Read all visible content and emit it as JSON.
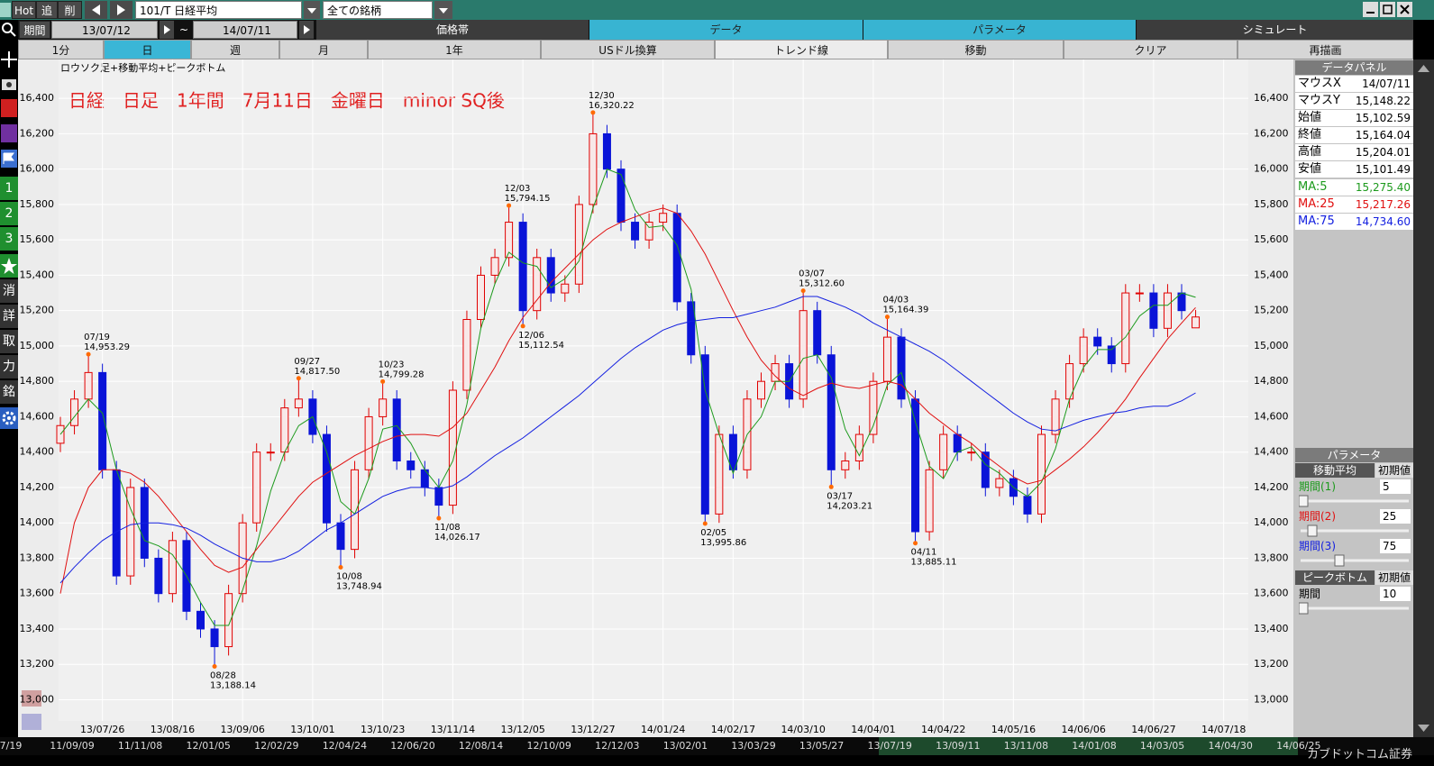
{
  "toolbar": {
    "buttons": [
      "Hot",
      "追",
      "削"
    ],
    "symbol": "101/T 日経平均",
    "filter": "全ての銘柄"
  },
  "period": {
    "label": "期間",
    "from": "13/07/12",
    "separator": "~",
    "to": "14/07/11"
  },
  "tabs": [
    "価格帯",
    "データ",
    "パラメータ",
    "シミュレート"
  ],
  "buttons": [
    "1分",
    "日",
    "週",
    "月",
    "1年",
    "USドル換算",
    "トレンド線",
    "移動",
    "クリア",
    "再描画"
  ],
  "sidebar": [
    "1",
    "2",
    "3",
    "消",
    "詳",
    "取",
    "力",
    "銘"
  ],
  "data_panel": {
    "title": "データパネル",
    "rows": [
      [
        "マウスX",
        "14/07/11"
      ],
      [
        "マウスY",
        "15,148.22"
      ],
      [
        "始値",
        "15,102.59"
      ],
      [
        "終値",
        "15,164.04"
      ],
      [
        "高値",
        "15,204.01"
      ],
      [
        "安値",
        "15,101.49"
      ],
      [
        "MA:5",
        "15,275.40"
      ],
      [
        "MA:25",
        "15,217.26"
      ],
      [
        "MA:75",
        "14,734.60"
      ]
    ]
  },
  "parameter_panel": {
    "title": "パラメータ",
    "sections": [
      {
        "title": "移動平均",
        "reset": "初期値",
        "params": [
          {
            "label": "期間(1)",
            "value": 5
          },
          {
            "label": "期間(2)",
            "value": 25
          },
          {
            "label": "期間(3)",
            "value": 75
          }
        ]
      },
      {
        "title": "ピークボトム",
        "reset": "初期値",
        "params": [
          {
            "label": "期間",
            "value": 10
          }
        ]
      }
    ]
  },
  "scroller": [
    "7/19",
    "11/09/09",
    "11/11/08",
    "12/01/05",
    "12/02/29",
    "12/04/24",
    "12/06/20",
    "12/08/14",
    "12/10/09",
    "12/12/03",
    "13/02/01",
    "13/03/29",
    "13/05/27",
    "13/07/19",
    "13/09/11",
    "13/11/08",
    "14/01/08",
    "14/03/05",
    "14/04/30",
    "14/06/25"
  ],
  "brand": "カブドットコム証券",
  "chart_data": {
    "type": "candlestick",
    "subtitle": "ロウソク足+移動平均+ピークボトム",
    "title": "日経　日足　1年間　7月11日　金曜日　minor SQ後",
    "categories": [
      null,
      null,
      null,
      "13/07/26",
      null,
      null,
      null,
      null,
      "13/08/16",
      null,
      null,
      null,
      null,
      "13/09/06",
      null,
      null,
      null,
      null,
      "13/10/01",
      null,
      null,
      null,
      null,
      "13/10/23",
      null,
      null,
      null,
      null,
      "13/11/14",
      null,
      null,
      null,
      null,
      "13/12/05",
      null,
      null,
      null,
      null,
      "13/12/27",
      null,
      null,
      null,
      null,
      "14/01/24",
      null,
      null,
      null,
      null,
      "14/02/17",
      null,
      null,
      null,
      null,
      "14/03/10",
      null,
      null,
      null,
      null,
      "14/04/01",
      null,
      null,
      null,
      null,
      "14/04/22",
      null,
      null,
      null,
      null,
      "14/05/16",
      null,
      null,
      null,
      null,
      "14/06/06",
      null,
      null,
      null,
      null,
      "14/06/27",
      null,
      null,
      null,
      null,
      "14/07/18"
    ],
    "open": [
      14450,
      14550,
      14700,
      14850,
      14300,
      13700,
      14200,
      13800,
      13600,
      13900,
      13500,
      13400,
      13300,
      13600,
      14000,
      14400,
      14400,
      14650,
      14700,
      14500,
      14000,
      13850,
      14300,
      14600,
      14700,
      14350,
      14300,
      14200,
      14100,
      14750,
      15150,
      15400,
      15500,
      15700,
      15200,
      15500,
      15300,
      15350,
      15800,
      16200,
      16000,
      15700,
      15600,
      15700,
      15750,
      15250,
      14950,
      14050,
      14500,
      14300,
      14700,
      14800,
      14900,
      14700,
      15200,
      14950,
      14300,
      14350,
      14500,
      14800,
      15050,
      14700,
      13950,
      14300,
      14500,
      14400,
      14400,
      14200,
      14250,
      14150,
      14050,
      14500,
      14700,
      14900,
      15050,
      15000,
      14900,
      15300,
      15300,
      15100,
      15300,
      15102.59,
      null,
      null
    ],
    "high": [
      14600,
      14750,
      14953.29,
      14900,
      14350,
      14250,
      14250,
      13850,
      13950,
      13950,
      13550,
      13450,
      13650,
      14050,
      14450,
      14450,
      14700,
      14817.5,
      14750,
      14550,
      14050,
      14350,
      14650,
      14799.28,
      14750,
      14400,
      14350,
      14250,
      14800,
      15200,
      15450,
      15550,
      15794.15,
      15750,
      15550,
      15550,
      15400,
      15850,
      16320.22,
      16250,
      16050,
      15750,
      15750,
      15800,
      15800,
      15300,
      15000,
      14550,
      14550,
      14750,
      14850,
      14950,
      14950,
      15312.6,
      15250,
      15000,
      14400,
      14550,
      14850,
      15164.39,
      15100,
      14750,
      14350,
      14550,
      14550,
      14450,
      14450,
      14300,
      14300,
      14200,
      14550,
      14750,
      14950,
      15100,
      15100,
      15050,
      15350,
      15350,
      15350,
      15350,
      15350,
      15204.01,
      null,
      null
    ],
    "low": [
      14400,
      14500,
      14650,
      14250,
      13650,
      13650,
      13750,
      13550,
      13550,
      13450,
      13350,
      13188.14,
      13250,
      13550,
      13950,
      14350,
      14350,
      14600,
      14450,
      13950,
      13748.94,
      13800,
      14250,
      14550,
      14300,
      14250,
      14150,
      14026.17,
      14050,
      14700,
      15100,
      15350,
      15450,
      15112.54,
      15150,
      15250,
      15250,
      15300,
      15750,
      15950,
      15650,
      15550,
      15550,
      15650,
      15200,
      14900,
      13995.86,
      14000,
      14250,
      14250,
      14650,
      14750,
      14650,
      14650,
      14900,
      14203.21,
      14250,
      14300,
      14450,
      14750,
      14650,
      13885.11,
      13900,
      14250,
      14350,
      14350,
      14150,
      14150,
      14100,
      14000,
      14000,
      14450,
      14650,
      14850,
      14950,
      14850,
      14850,
      15250,
      15050,
      15050,
      15150,
      15101.49,
      null,
      null
    ],
    "close": [
      14550,
      14700,
      14850,
      14300,
      13700,
      14200,
      13800,
      13600,
      13900,
      13500,
      13400,
      13300,
      13600,
      14000,
      14400,
      14400,
      14650,
      14700,
      14500,
      14000,
      13850,
      14300,
      14600,
      14700,
      14350,
      14300,
      14200,
      14100,
      14750,
      15150,
      15400,
      15500,
      15700,
      15200,
      15500,
      15300,
      15350,
      15800,
      16200,
      16000,
      15700,
      15600,
      15700,
      15750,
      15250,
      14950,
      14050,
      14500,
      14300,
      14700,
      14800,
      14900,
      14700,
      15200,
      14950,
      14300,
      14350,
      14500,
      14800,
      15050,
      14700,
      13950,
      14300,
      14500,
      14400,
      14400,
      14200,
      14250,
      14150,
      14050,
      14500,
      14700,
      14900,
      15050,
      15000,
      14900,
      15300,
      15300,
      15100,
      15300,
      15200,
      15164.04,
      null,
      null
    ],
    "up_color": "#e00000",
    "down_color": "#0a14d8",
    "series": [
      {
        "color": "#1c9a1c",
        "values": [
          14500,
          14600,
          14700,
          14620,
          14300,
          14080,
          13900,
          13870,
          13820,
          13700,
          13550,
          13420,
          13420,
          13620,
          13870,
          14180,
          14400,
          14550,
          14600,
          14400,
          14120,
          14050,
          14250,
          14530,
          14550,
          14450,
          14300,
          14200,
          14350,
          14670,
          15100,
          15350,
          15530,
          15470,
          15450,
          15330,
          15380,
          15480,
          15780,
          16000,
          15970,
          15770,
          15670,
          15680,
          15570,
          15320,
          14750,
          14500,
          14280,
          14500,
          14600,
          14800,
          14800,
          14930,
          14950,
          14820,
          14530,
          14380,
          14550,
          14780,
          14850,
          14570,
          14320,
          14250,
          14400,
          14430,
          14330,
          14280,
          14200,
          14150,
          14230,
          14420,
          14700,
          14880,
          14980,
          14980,
          15050,
          15170,
          15230,
          15230,
          15300,
          15275.4,
          null,
          null
        ]
      },
      {
        "color": "#e01010",
        "values": [
          13600,
          14000,
          14200,
          14300,
          14300,
          14280,
          14230,
          14150,
          14050,
          13950,
          13850,
          13760,
          13720,
          13750,
          13850,
          13950,
          14050,
          14150,
          14230,
          14280,
          14330,
          14380,
          14420,
          14460,
          14490,
          14500,
          14500,
          14490,
          14540,
          14620,
          14750,
          14880,
          15030,
          15160,
          15260,
          15360,
          15440,
          15520,
          15600,
          15660,
          15700,
          15730,
          15760,
          15780,
          15750,
          15650,
          15520,
          15360,
          15200,
          15050,
          14920,
          14830,
          14760,
          14720,
          14760,
          14790,
          14770,
          14760,
          14780,
          14800,
          14780,
          14700,
          14620,
          14560,
          14500,
          14450,
          14380,
          14320,
          14260,
          14220,
          14240,
          14300,
          14360,
          14430,
          14510,
          14600,
          14700,
          14820,
          14930,
          15040,
          15130,
          15217.26,
          null,
          null
        ]
      },
      {
        "color": "#1420e0",
        "values": [
          13660,
          13750,
          13830,
          13900,
          13950,
          13990,
          14000,
          14000,
          13990,
          13970,
          13930,
          13880,
          13840,
          13800,
          13780,
          13780,
          13800,
          13840,
          13900,
          13960,
          14000,
          14050,
          14100,
          14150,
          14180,
          14200,
          14200,
          14190,
          14210,
          14260,
          14320,
          14380,
          14430,
          14480,
          14540,
          14600,
          14660,
          14720,
          14790,
          14860,
          14930,
          14990,
          15040,
          15090,
          15120,
          15140,
          15150,
          15160,
          15160,
          15180,
          15200,
          15220,
          15250,
          15280,
          15280,
          15250,
          15220,
          15180,
          15130,
          15090,
          15050,
          15010,
          14970,
          14920,
          14860,
          14800,
          14740,
          14680,
          14620,
          14570,
          14530,
          14520,
          14550,
          14580,
          14600,
          14620,
          14630,
          14650,
          14660,
          14660,
          14690,
          14734.6,
          null,
          null
        ]
      }
    ],
    "annotations": [
      {
        "date": "07/19",
        "value": 14953.29,
        "label": "14,953.29"
      },
      {
        "date": "08/28",
        "value": 13188.14,
        "label": "13,188.14"
      },
      {
        "date": "09/27",
        "value": 14817.5,
        "label": "14,817.50"
      },
      {
        "date": "10/08",
        "value": 13748.94,
        "label": "13,748.94"
      },
      {
        "date": "10/23",
        "value": 14799.28,
        "label": "14,799.28"
      },
      {
        "date": "11/08",
        "value": 14026.17,
        "label": "14,026.17"
      },
      {
        "date": "12/03",
        "value": 15794.15,
        "label": "15,794.15"
      },
      {
        "date": "12/06",
        "value": 15112.54,
        "label": "15,112.54"
      },
      {
        "date": "12/30",
        "value": 16320.22,
        "label": "16,320.22"
      },
      {
        "date": "02/05",
        "value": 13995.86,
        "label": "13,995.86"
      },
      {
        "date": "03/07",
        "value": 15312.6,
        "label": "15,312.60"
      },
      {
        "date": "03/17",
        "value": 14203.21,
        "label": "14,203.21"
      },
      {
        "date": "04/03",
        "value": 15164.39,
        "label": "15,164.39"
      },
      {
        "date": "04/11",
        "value": 13885.11,
        "label": "13,885.11"
      }
    ],
    "ylim": [
      12880,
      16620
    ],
    "yticks": [
      {
        "value": 13000,
        "label": "13,000"
      },
      {
        "value": 13200,
        "label": "13,200"
      },
      {
        "value": 13400,
        "label": "13,400"
      },
      {
        "value": 13600,
        "label": "13,600"
      },
      {
        "value": 13800,
        "label": "13,800"
      },
      {
        "value": 14000,
        "label": "14,000"
      },
      {
        "value": 14200,
        "label": "14,200"
      },
      {
        "value": 14400,
        "label": "14,400"
      },
      {
        "value": 14600,
        "label": "14,600"
      },
      {
        "value": 14800,
        "label": "14,800"
      },
      {
        "value": 15000,
        "label": "15,000"
      },
      {
        "value": 15200,
        "label": "15,200"
      },
      {
        "value": 15400,
        "label": "15,400"
      },
      {
        "value": 15600,
        "label": "15,600"
      },
      {
        "value": 15800,
        "label": "15,800"
      },
      {
        "value": 16000,
        "label": "16,000"
      },
      {
        "value": 16200,
        "label": "16,200"
      },
      {
        "value": 16400,
        "label": "16,400"
      }
    ],
    "grid": true
  }
}
